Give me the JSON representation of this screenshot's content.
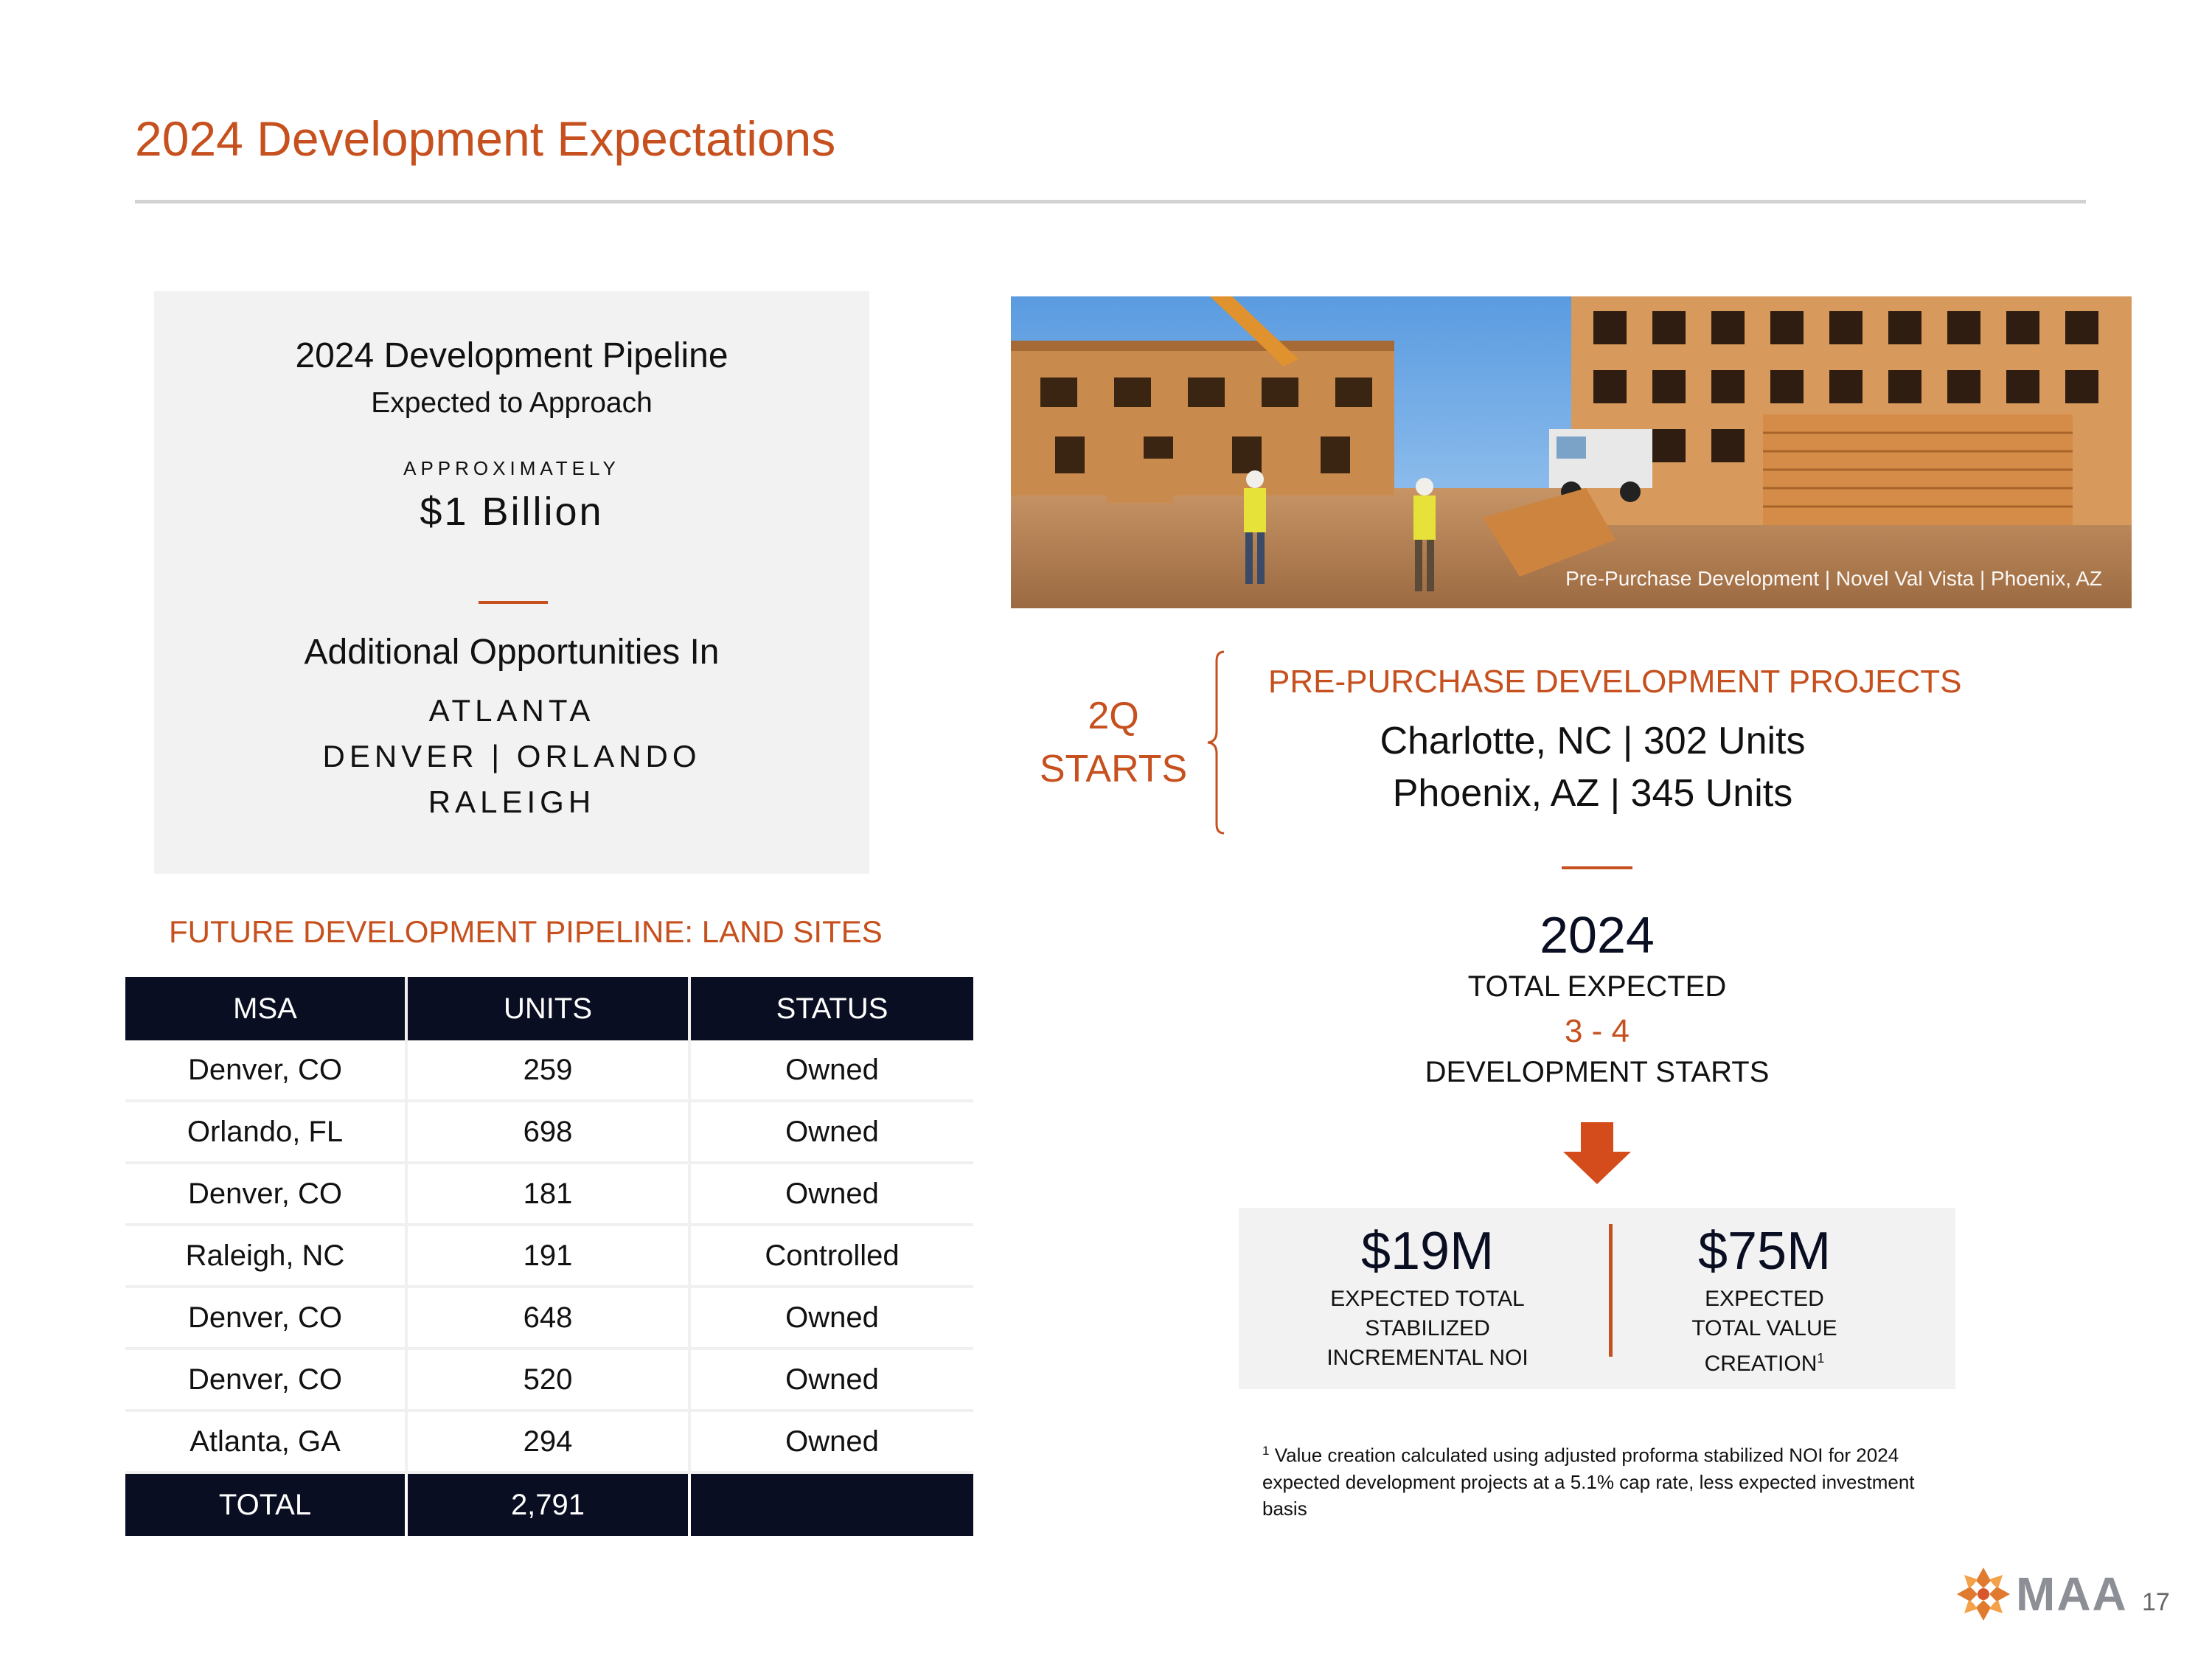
{
  "page": {
    "title": "2024 Development Expectations",
    "page_number": "17"
  },
  "pipeline_box": {
    "title": "2024 Development Pipeline",
    "subtitle": "Expected to Approach",
    "approx_label": "APPROXIMATELY",
    "amount": "$1 Billion",
    "additional_label": "Additional Opportunities In",
    "cities": [
      "ATLANTA",
      "DENVER | ORLANDO",
      "RALEIGH"
    ]
  },
  "land_sites": {
    "section_title": "FUTURE DEVELOPMENT PIPELINE: LAND SITES",
    "headers": [
      "MSA",
      "UNITS",
      "STATUS"
    ],
    "rows": [
      {
        "msa": "Denver, CO",
        "units": "259",
        "status": "Owned"
      },
      {
        "msa": "Orlando, FL",
        "units": "698",
        "status": "Owned"
      },
      {
        "msa": "Denver, CO",
        "units": "181",
        "status": "Owned"
      },
      {
        "msa": "Raleigh, NC",
        "units": "191",
        "status": "Controlled"
      },
      {
        "msa": "Denver, CO",
        "units": "648",
        "status": "Owned"
      },
      {
        "msa": "Denver, CO",
        "units": "520",
        "status": "Owned"
      },
      {
        "msa": "Atlanta, GA",
        "units": "294",
        "status": "Owned"
      }
    ],
    "total": {
      "label": "TOTAL",
      "units": "2,791",
      "status": ""
    }
  },
  "photo": {
    "caption": "Pre-Purchase Development | Novel Val Vista | Phoenix, AZ"
  },
  "starts": {
    "quarter": "2Q",
    "label": "STARTS",
    "projects_title": "PRE-PURCHASE DEVELOPMENT PROJECTS",
    "projects": [
      "Charlotte, NC | 302 Units",
      "Phoenix, AZ | 345 Units"
    ]
  },
  "expectations": {
    "year": "2024",
    "total_expected": "TOTAL EXPECTED",
    "range": "3 - 4",
    "dev_starts": "DEVELOPMENT STARTS"
  },
  "metrics": [
    {
      "value": "$19M",
      "label_lines": [
        "EXPECTED TOTAL",
        "STABILIZED",
        "INCREMENTAL NOI"
      ],
      "sup": ""
    },
    {
      "value": "$75M",
      "label_lines": [
        "EXPECTED",
        "TOTAL VALUE",
        "CREATION"
      ],
      "sup": "1"
    }
  ],
  "footnote": {
    "marker": "1",
    "text": "Value creation calculated using adjusted proforma stabilized NOI for 2024 expected development projects at a 5.1% cap rate, less expected investment basis"
  },
  "logo": {
    "text": "MAA",
    "icon": "maa-logo-icon"
  },
  "colors": {
    "accent": "#c6501e",
    "navy": "#0a0e22",
    "panel": "#f2f2f2"
  }
}
